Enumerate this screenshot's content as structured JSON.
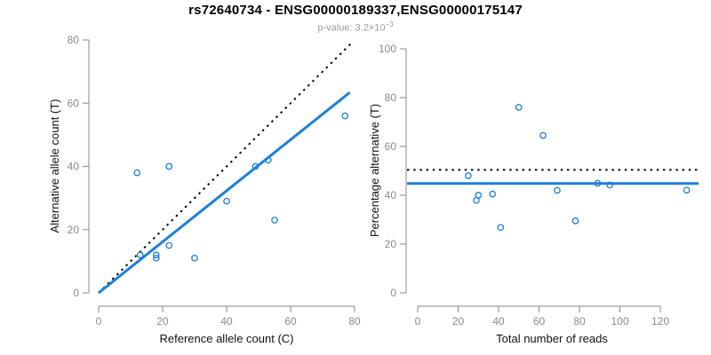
{
  "header": {
    "title": "rs72640734 - ENSG00000189337,ENSG00000175147",
    "pvalue_prefix": "p-value: 3.2×10",
    "pvalue_exponent": "−3"
  },
  "colors": {
    "accent_blue": "#1e7fd8",
    "dotted_black": "#000000",
    "axis_gray": "#8a8a8a",
    "axis_title_black": "#111111",
    "subtitle_gray": "#9c9c9c"
  },
  "chart_data": [
    {
      "type": "scatter",
      "panel": "left",
      "xlabel": "Reference allele count (C)",
      "ylabel": "Alternative allele count (T)",
      "xlim": [
        0,
        80
      ],
      "ylim": [
        0,
        80
      ],
      "xticks": [
        0,
        20,
        40,
        60,
        80
      ],
      "yticks": [
        0,
        20,
        40,
        60,
        80
      ],
      "grid": false,
      "marker": "open-circle",
      "marker_color": "#1e7fd8",
      "points": [
        [
          12,
          38
        ],
        [
          13,
          12
        ],
        [
          18,
          11
        ],
        [
          18,
          12
        ],
        [
          22,
          15
        ],
        [
          22,
          40
        ],
        [
          30,
          11
        ],
        [
          40,
          29
        ],
        [
          49,
          40
        ],
        [
          53,
          42
        ],
        [
          55,
          23
        ],
        [
          77,
          56
        ]
      ],
      "lines": [
        {
          "name": "identity-line",
          "style": "dotted",
          "color": "#000000",
          "x1": 0,
          "y1": 0,
          "x2": 78.8,
          "y2": 78.8
        },
        {
          "name": "fitted-line",
          "style": "solid",
          "color": "#1e7fd8",
          "x1": 0,
          "y1": 0,
          "x2": 78.5,
          "y2": 63.4
        }
      ]
    },
    {
      "type": "scatter",
      "panel": "right",
      "xlabel": "Total number of reads",
      "ylabel": "Percentage alternative (T)",
      "xlim": [
        0,
        135
      ],
      "ylim": [
        0,
        100
      ],
      "xticks": [
        0,
        20,
        40,
        60,
        80,
        100,
        120
      ],
      "yticks": [
        0,
        20,
        40,
        60,
        80,
        100
      ],
      "grid": false,
      "marker": "open-circle",
      "marker_color": "#1e7fd8",
      "points": [
        [
          25,
          48
        ],
        [
          29,
          37.9
        ],
        [
          30,
          40
        ],
        [
          37,
          40.5
        ],
        [
          41,
          26.8
        ],
        [
          50,
          76
        ],
        [
          62,
          64.5
        ],
        [
          69,
          42
        ],
        [
          78,
          29.5
        ],
        [
          89,
          44.9
        ],
        [
          95,
          44.2
        ],
        [
          133,
          42.1
        ]
      ],
      "lines": [
        {
          "name": "null-line-50pct",
          "style": "dotted",
          "color": "#000000",
          "y": 50.4
        },
        {
          "name": "fitted-line",
          "style": "solid",
          "color": "#1e7fd8",
          "y": 44.8
        }
      ]
    }
  ]
}
